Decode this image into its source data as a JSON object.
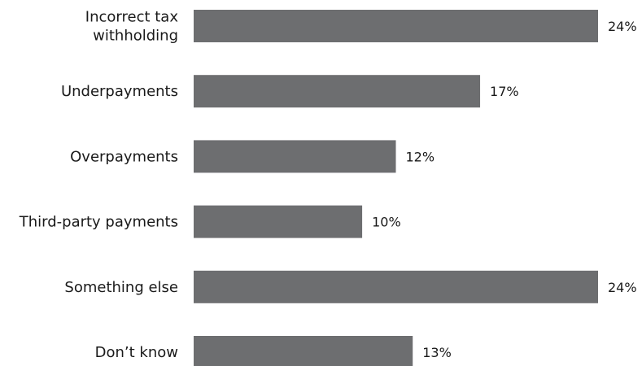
{
  "chart_data": {
    "type": "bar",
    "orientation": "horizontal",
    "categories": [
      "Incorrect tax withholding",
      "Underpayments",
      "Overpayments",
      "Third-party payments",
      "Something else",
      "Don’t know"
    ],
    "category_lines": [
      [
        "Incorrect tax",
        "withholding"
      ],
      [
        "Underpayments"
      ],
      [
        "Overpayments"
      ],
      [
        "Third-party payments"
      ],
      [
        "Something else"
      ],
      [
        "Don’t know"
      ]
    ],
    "values": [
      24,
      17,
      12,
      10,
      24,
      13
    ],
    "value_labels": [
      "24%",
      "17%",
      "12%",
      "10%",
      "24%",
      "13%"
    ],
    "unit": "%",
    "xlim": [
      0,
      24
    ],
    "grid": false,
    "bar_color": "#6d6e70",
    "text_color": "#1a1a1a"
  }
}
